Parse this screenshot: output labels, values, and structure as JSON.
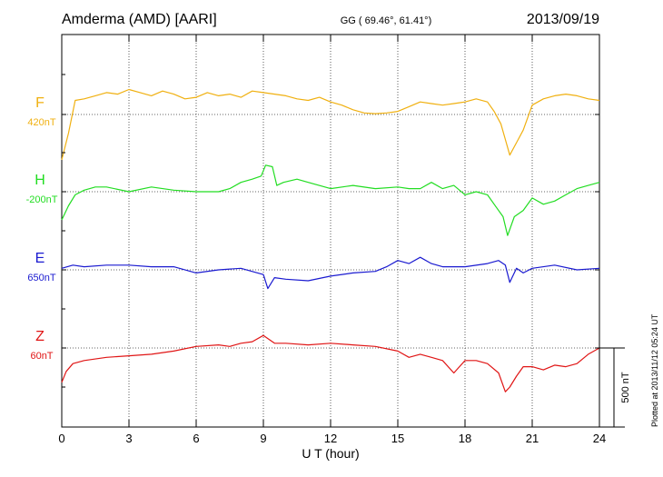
{
  "header": {
    "station": "Amderma (AMD)  [AARI]",
    "coords": "GG ( 69.46°,  61.41°)",
    "date": "2013/09/19"
  },
  "footer": {
    "plotted": "Plotted at 2013/11/12 05:24 UT"
  },
  "chart_data": {
    "type": "line",
    "xlabel": "U T (hour)",
    "xlim": [
      0,
      24
    ],
    "xticks": [
      0,
      3,
      6,
      9,
      12,
      15,
      18,
      21,
      24
    ],
    "x_tick_labels": [
      "0",
      "3",
      "6",
      "9",
      "12",
      "15",
      "18",
      "21",
      "24"
    ],
    "scale_bar": {
      "label": "500 nT",
      "value_nT": 500
    },
    "grid": true,
    "series": [
      {
        "name": "F",
        "baseline_label": "420nT",
        "baseline_nT": 420,
        "color": "#f0b010",
        "x": [
          0,
          0.3,
          0.6,
          1,
          1.5,
          2,
          2.5,
          3,
          3.5,
          4,
          4.5,
          5,
          5.5,
          6,
          6.5,
          7,
          7.5,
          8,
          8.5,
          9,
          9.5,
          10,
          10.5,
          11,
          11.5,
          12,
          12.5,
          13,
          13.5,
          14,
          14.5,
          15,
          15.5,
          16,
          16.5,
          17,
          17.5,
          18,
          18.5,
          19,
          19.3,
          19.6,
          19.8,
          20,
          20.3,
          20.6,
          21,
          21.5,
          22,
          22.5,
          23,
          23.5,
          24
        ],
        "values": [
          -290,
          -120,
          90,
          100,
          120,
          140,
          130,
          160,
          140,
          120,
          150,
          130,
          100,
          110,
          140,
          120,
          130,
          110,
          150,
          140,
          130,
          120,
          100,
          90,
          110,
          80,
          60,
          30,
          10,
          5,
          10,
          20,
          50,
          80,
          70,
          60,
          70,
          80,
          100,
          80,
          20,
          -60,
          -160,
          -260,
          -180,
          -100,
          60,
          100,
          120,
          130,
          120,
          100,
          90
        ]
      },
      {
        "name": "H",
        "baseline_label": "-200nT",
        "baseline_nT": -200,
        "color": "#22dd22",
        "x": [
          0,
          0.3,
          0.6,
          1,
          1.5,
          2,
          3,
          4,
          5,
          6,
          7,
          7.5,
          8,
          8.5,
          8.9,
          9.1,
          9.4,
          9.6,
          9.9,
          10.5,
          11,
          12,
          13,
          14,
          15,
          15.5,
          16,
          16.5,
          17,
          17.5,
          18,
          18.5,
          19,
          19.4,
          19.7,
          19.9,
          20.2,
          20.6,
          21,
          21.5,
          22,
          22.5,
          23,
          23.5,
          24
        ],
        "values": [
          -180,
          -90,
          -20,
          10,
          30,
          30,
          0,
          30,
          10,
          0,
          0,
          20,
          60,
          80,
          100,
          170,
          160,
          40,
          60,
          80,
          60,
          20,
          40,
          20,
          30,
          20,
          20,
          60,
          20,
          40,
          -20,
          0,
          -20,
          -100,
          -160,
          -280,
          -160,
          -120,
          -40,
          -80,
          -60,
          -20,
          20,
          40,
          60
        ]
      },
      {
        "name": "E",
        "baseline_label": "650nT",
        "baseline_nT": 650,
        "color": "#1a1ad0",
        "x": [
          0,
          0.5,
          1,
          2,
          3,
          4,
          5,
          6,
          7,
          8,
          9,
          9.2,
          9.5,
          10,
          11,
          12,
          13,
          14,
          14.5,
          15,
          15.5,
          16,
          16.5,
          17,
          18,
          19,
          19.5,
          19.8,
          20,
          20.3,
          20.6,
          21,
          22,
          23,
          24
        ],
        "values": [
          10,
          30,
          20,
          30,
          30,
          20,
          20,
          -20,
          0,
          10,
          -30,
          -120,
          -50,
          -60,
          -70,
          -40,
          -20,
          -10,
          20,
          60,
          40,
          80,
          40,
          20,
          20,
          40,
          60,
          30,
          -80,
          10,
          -20,
          10,
          30,
          0,
          10
        ]
      },
      {
        "name": "Z",
        "baseline_label": "60nT",
        "baseline_nT": 60,
        "color": "#e01515",
        "x": [
          0,
          0.2,
          0.5,
          1,
          2,
          3,
          4,
          5,
          6,
          7,
          7.5,
          8,
          8.5,
          9,
          9.5,
          10,
          11,
          12,
          13,
          14,
          15,
          15.5,
          16,
          16.5,
          17,
          17.5,
          18,
          18.5,
          19,
          19.5,
          19.8,
          20,
          20.3,
          20.6,
          21,
          21.5,
          22,
          22.5,
          23,
          23.5,
          24
        ],
        "values": [
          -220,
          -150,
          -100,
          -80,
          -60,
          -50,
          -40,
          -20,
          10,
          20,
          10,
          30,
          40,
          80,
          30,
          30,
          20,
          30,
          20,
          10,
          -20,
          -60,
          -40,
          -60,
          -80,
          -160,
          -80,
          -80,
          -100,
          -160,
          -280,
          -250,
          -180,
          -120,
          -120,
          -140,
          -110,
          -120,
          -100,
          -40,
          0
        ]
      }
    ]
  }
}
